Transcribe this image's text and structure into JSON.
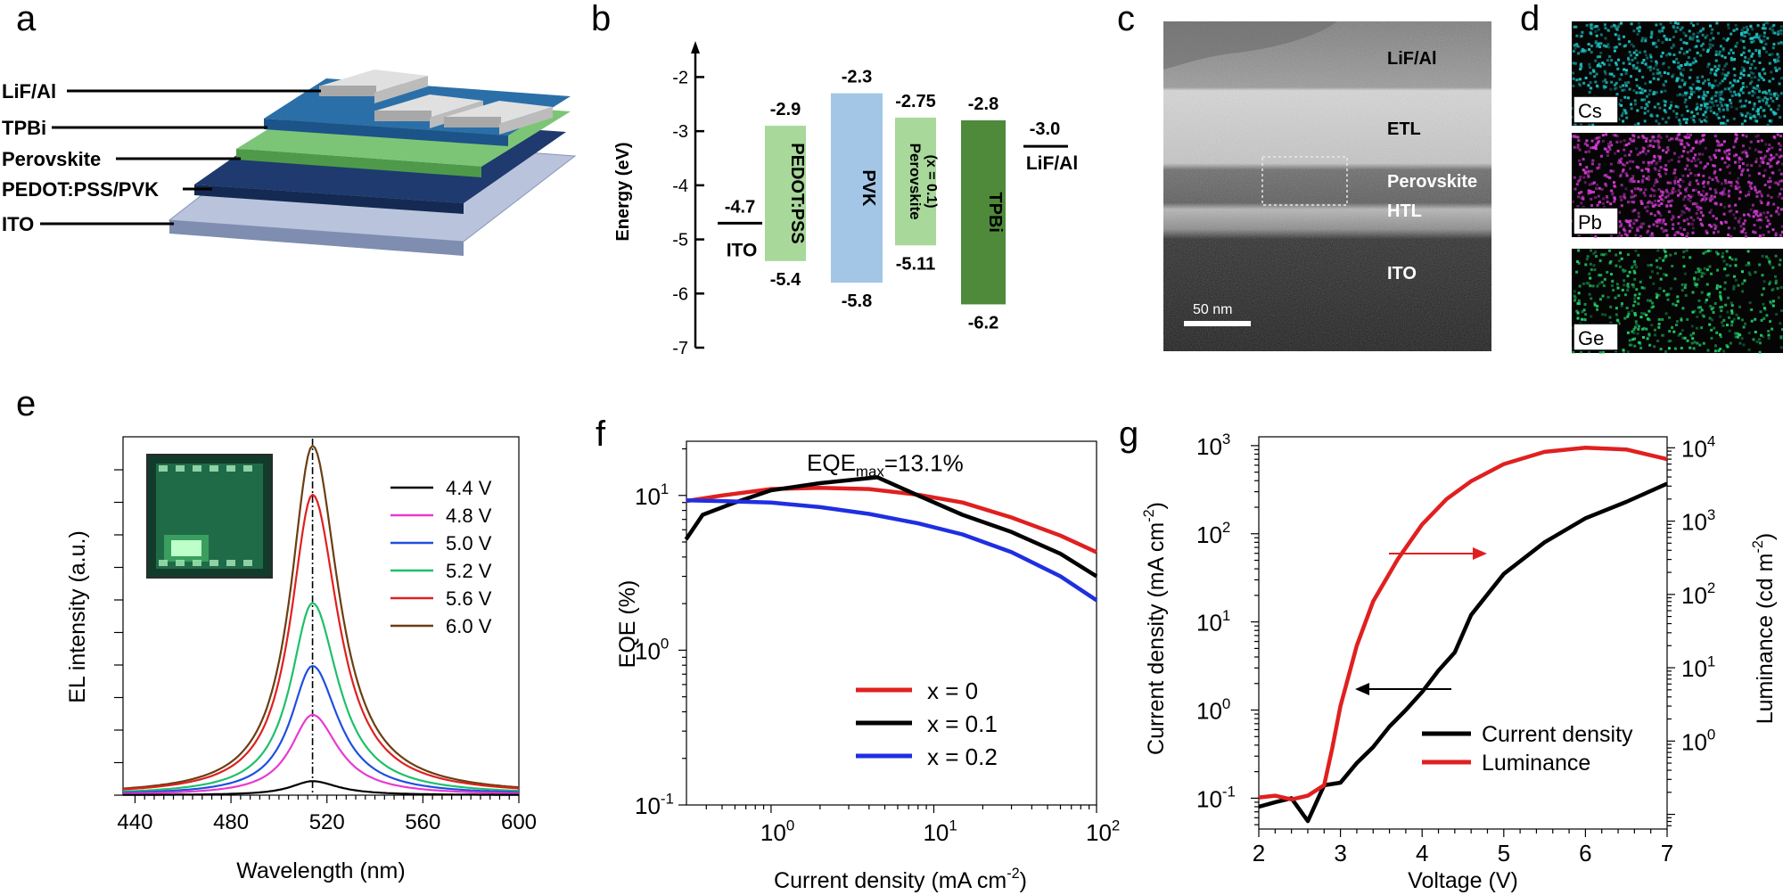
{
  "panels": {
    "a": "a",
    "b": "b",
    "c": "c",
    "d": "d",
    "e": "e",
    "f": "f",
    "g": "g"
  },
  "device_stack": {
    "layers": [
      "LiF/Al",
      "TPBi",
      "Perovskite",
      "PEDOT:PSS/PVK",
      "ITO"
    ],
    "colors": {
      "ito": "#b9c4dc",
      "pedot": "#1e3a6e",
      "perov": "#7cc576",
      "tpbi": "#2b6fa8",
      "lif": "#d8d8d8"
    }
  },
  "energy_diagram": {
    "ylabel": "Energy (eV)",
    "ticks": [
      -2,
      -3,
      -4,
      -5,
      -6,
      -7
    ],
    "ylim": [
      -7,
      -1.4
    ],
    "ito": {
      "level": -4.7,
      "label": "-4.7",
      "name": "ITO"
    },
    "lif": {
      "level": -3.0,
      "label": "-3.0",
      "name": "LiF/Al"
    },
    "blocks": [
      {
        "name": "PEDOT:PSS",
        "top": -2.9,
        "bottom": -5.4,
        "top_label": "-2.9",
        "bottom_label": "-5.4",
        "color": "#a8d89a"
      },
      {
        "name": "PVK",
        "top": -2.3,
        "bottom": -5.8,
        "top_label": "-2.3",
        "bottom_label": "-5.8",
        "color": "#a4c6e6"
      },
      {
        "name": "Perovskite",
        "name2": "(x = 0.1)",
        "top": -2.75,
        "bottom": -5.11,
        "top_label": "-2.75",
        "bottom_label": "-5.11",
        "color": "#a8d89a"
      },
      {
        "name": "TPBi",
        "top": -2.8,
        "bottom": -6.2,
        "top_label": "-2.8",
        "bottom_label": "-6.2",
        "color": "#4e8a3a"
      }
    ]
  },
  "tem": {
    "layers": [
      "LiF/Al",
      "ETL",
      "Perovskite",
      "HTL",
      "ITO"
    ],
    "scalebar": "50 nm"
  },
  "eds": {
    "maps": [
      {
        "element": "Cs",
        "color": "#1fc7c7"
      },
      {
        "element": "Pb",
        "color": "#d43bd4"
      },
      {
        "element": "Ge",
        "color": "#22d46a"
      }
    ]
  },
  "chart_data": [
    {
      "type": "line",
      "panel": "e",
      "title": "",
      "xlabel": "Wavelength (nm)",
      "ylabel": "EL intensity (a.u.)",
      "xlim": [
        435,
        600
      ],
      "xticks": [
        440,
        480,
        520,
        560,
        600
      ],
      "peak_nm": 514,
      "series": [
        {
          "name": "4.4 V",
          "peak": 0.04,
          "color": "#000000"
        },
        {
          "name": "4.8 V",
          "peak": 0.23,
          "color": "#e83ad0"
        },
        {
          "name": "5.0 V",
          "peak": 0.37,
          "color": "#1f4fe0"
        },
        {
          "name": "5.2 V",
          "peak": 0.55,
          "color": "#1fbf6a"
        },
        {
          "name": "5.6 V",
          "peak": 0.86,
          "color": "#e02020"
        },
        {
          "name": "6.0 V",
          "peak": 1.0,
          "color": "#6a3e12"
        }
      ]
    },
    {
      "type": "line",
      "panel": "f",
      "xscale": "log",
      "yscale": "log",
      "xlabel": "Current density (mA cm",
      "xlabel_sup": "-2",
      "xlabel_end": ")",
      "ylabel": "EQE (%)",
      "annotation": "EQE",
      "annotation_sub": "max",
      "annotation_end": "=13.1%",
      "xlim_exp": [
        -0.52,
        2
      ],
      "ylim_exp": [
        -1,
        1.35
      ],
      "xticks": [
        {
          "base": "10",
          "exp": "0",
          "v": 0
        },
        {
          "base": "10",
          "exp": "1",
          "v": 1
        },
        {
          "base": "10",
          "exp": "2",
          "v": 2
        }
      ],
      "yticks": [
        {
          "base": "10",
          "exp": "-1",
          "v": -1
        },
        {
          "base": "10",
          "exp": "0",
          "v": 0
        },
        {
          "base": "10",
          "exp": "1",
          "v": 1
        }
      ],
      "series": [
        {
          "name": "x = 0",
          "color": "#e02020",
          "x": [
            0.3,
            0.5,
            1,
            2,
            4,
            8,
            15,
            30,
            60,
            100
          ],
          "y": [
            9.2,
            10.0,
            11.0,
            11.2,
            11.0,
            10.1,
            9.0,
            7.2,
            5.5,
            4.3
          ]
        },
        {
          "name": "x = 0.1",
          "color": "#000000",
          "x": [
            0.3,
            0.38,
            0.6,
            1,
            2,
            4.5,
            8,
            15,
            30,
            60,
            100
          ],
          "y": [
            5.2,
            7.5,
            9.0,
            10.8,
            12.0,
            13.1,
            10.0,
            7.5,
            5.8,
            4.2,
            3.0
          ]
        },
        {
          "name": "x = 0.2",
          "color": "#1f2fe0",
          "x": [
            0.3,
            0.5,
            1,
            2,
            4,
            8,
            15,
            30,
            60,
            100
          ],
          "y": [
            9.3,
            9.2,
            9.0,
            8.4,
            7.6,
            6.6,
            5.6,
            4.3,
            3.0,
            2.1
          ]
        }
      ]
    },
    {
      "type": "line",
      "panel": "g",
      "xlabel": "Voltage (V)",
      "ylabel_left": "Current density (mA cm",
      "ylabel_left_sup": "-2",
      "ylabel_left_end": ")",
      "ylabel_right": "Luminance (cd m",
      "ylabel_right_sup": "-2",
      "ylabel_right_end": ")",
      "xlim": [
        2,
        7
      ],
      "xticks": [
        2,
        3,
        4,
        5,
        6,
        7
      ],
      "ylim_left_exp": [
        -1.35,
        3.1
      ],
      "ylim_right_exp": [
        -1.2,
        4.15
      ],
      "yticks_left": [
        {
          "base": "10",
          "exp": "-1",
          "v": -1
        },
        {
          "base": "10",
          "exp": "0",
          "v": 0
        },
        {
          "base": "10",
          "exp": "1",
          "v": 1
        },
        {
          "base": "10",
          "exp": "2",
          "v": 2
        },
        {
          "base": "10",
          "exp": "3",
          "v": 3
        }
      ],
      "yticks_right": [
        {
          "base": "10",
          "exp": "0",
          "v": 0
        },
        {
          "base": "10",
          "exp": "1",
          "v": 1
        },
        {
          "base": "10",
          "exp": "2",
          "v": 2
        },
        {
          "base": "10",
          "exp": "3",
          "v": 3
        },
        {
          "base": "10",
          "exp": "4",
          "v": 4
        }
      ],
      "series": [
        {
          "name": "Current density",
          "axis": "left",
          "color": "#000000",
          "x": [
            2.0,
            2.2,
            2.4,
            2.6,
            2.8,
            3.0,
            3.2,
            3.4,
            3.6,
            3.8,
            4.0,
            4.2,
            4.4,
            4.6,
            5.0,
            5.5,
            6.0,
            6.5,
            7.0
          ],
          "y": [
            0.08,
            0.09,
            0.1,
            0.055,
            0.14,
            0.15,
            0.25,
            0.38,
            0.65,
            1.0,
            1.6,
            2.8,
            4.5,
            12,
            35,
            80,
            150,
            230,
            370
          ]
        },
        {
          "name": "Luminance",
          "axis": "right",
          "color": "#e02020",
          "x": [
            2.0,
            2.2,
            2.4,
            2.6,
            2.8,
            2.9,
            3.0,
            3.2,
            3.4,
            3.7,
            4.0,
            4.3,
            4.6,
            5.0,
            5.5,
            6.0,
            6.5,
            7.0
          ],
          "y": [
            0.17,
            0.18,
            0.16,
            0.18,
            0.25,
            0.8,
            3,
            20,
            80,
            300,
            900,
            2000,
            3500,
            6000,
            8800,
            10000,
            9500,
            7000
          ]
        }
      ]
    }
  ]
}
